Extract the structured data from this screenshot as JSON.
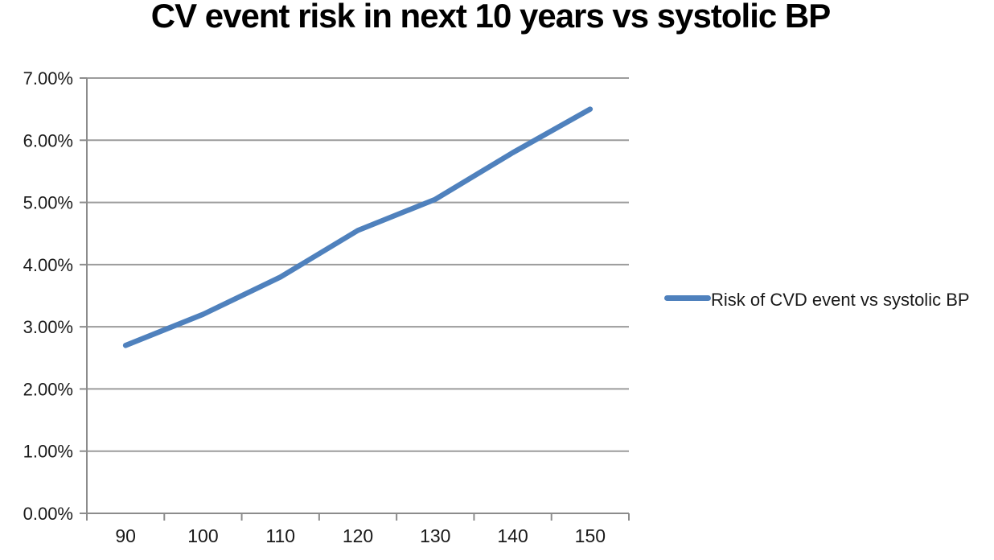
{
  "title": "CV event risk in next 10 years vs systolic BP",
  "legend": {
    "label": "Risk of CVD event vs systolic BP",
    "position": "right"
  },
  "colors": {
    "series": "#4F81BD",
    "gridline": "#9C9C9C",
    "axis": "#8C8C8C",
    "text": "#1A1A1A",
    "title_text": "#000000",
    "background": "#FFFFFF"
  },
  "chart_data": {
    "type": "line",
    "title": "CV event risk in next 10 years vs systolic BP",
    "xlabel": "",
    "ylabel": "",
    "x": [
      90,
      100,
      110,
      120,
      130,
      140,
      150
    ],
    "series": [
      {
        "name": "Risk of CVD event vs systolic BP",
        "values": [
          2.7,
          3.2,
          3.8,
          4.55,
          5.05,
          5.8,
          6.5
        ]
      }
    ],
    "ylim": [
      0,
      7
    ],
    "yticks": [
      0,
      1,
      2,
      3,
      4,
      5,
      6,
      7
    ],
    "ytick_labels": [
      "0.00%",
      "1.00%",
      "2.00%",
      "3.00%",
      "4.00%",
      "5.00%",
      "6.00%",
      "7.00%"
    ],
    "xtick_labels": [
      "90",
      "100",
      "110",
      "120",
      "130",
      "140",
      "150"
    ],
    "grid": true,
    "legend_position": "right"
  }
}
